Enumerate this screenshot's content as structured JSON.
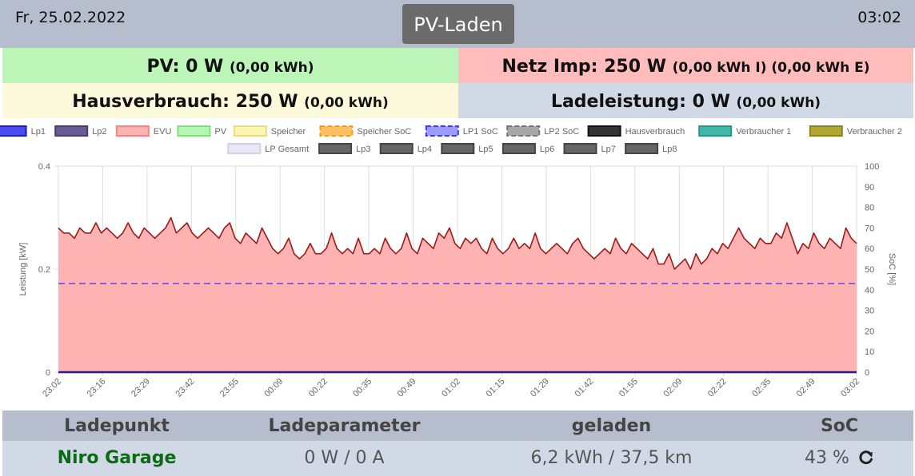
{
  "header": {
    "date": "Fr, 25.02.2022",
    "mode_button": "PV-Laden",
    "time": "03:02"
  },
  "status": {
    "pv": {
      "label": "PV: 0 W",
      "sub": "(0,00 kWh)"
    },
    "netz": {
      "label": "Netz Imp: 250 W",
      "sub": "(0,00 kWh I) (0,00 kWh E)"
    },
    "haus": {
      "label": "Hausverbrauch: 250 W",
      "sub": "(0,00 kWh)"
    },
    "lade": {
      "label": "Ladeleistung: 0 W",
      "sub": "(0,00 kWh)"
    }
  },
  "colors": {
    "pv_bg": "#bdf5b9",
    "netz_bg": "#ffbcbc",
    "haus_bg": "#fdfadc",
    "lade_bg": "#d2d9e6",
    "header_bg": "#b6bdcc",
    "mode_button_bg": "#6b6b6b",
    "evu_fill": "#ffb3b3",
    "evu_line": "#9b1a1a",
    "lp1_soc_line": "#8a5ce6",
    "lp1_line": "#1a1aa8",
    "ladepunkt_name": "#0b6a14"
  },
  "chart_data": {
    "type": "area",
    "ylabel": "Leistung [kW]",
    "y2label": "SoC [%]",
    "ylim": [
      0,
      0.4
    ],
    "y_ticks": [
      "0",
      "0.2",
      "0.4"
    ],
    "y2lim": [
      0,
      100
    ],
    "y2_ticks": [
      "0",
      "10",
      "20",
      "30",
      "40",
      "50",
      "60",
      "70",
      "80",
      "90",
      "100"
    ],
    "x_ticks": [
      "23:02",
      "23:16",
      "23:29",
      "23:42",
      "23:55",
      "00:09",
      "00:22",
      "00:35",
      "00:49",
      "01:02",
      "01:15",
      "01:29",
      "01:42",
      "01:55",
      "02:09",
      "02:22",
      "02:35",
      "02:49",
      "03:02"
    ],
    "legend": [
      {
        "name": "Lp1",
        "color": "#4b4bf0",
        "border": "#1a1ac8",
        "dashed": false
      },
      {
        "name": "Lp2",
        "color": "#6b5b95",
        "border": "#4b3b75",
        "dashed": false
      },
      {
        "name": "EVU",
        "color": "#ffb3b3",
        "border": "#ff8080",
        "dashed": false
      },
      {
        "name": "PV",
        "color": "#b3f7b3",
        "border": "#80e080",
        "dashed": false
      },
      {
        "name": "Speicher",
        "color": "#fbf5b0",
        "border": "#e6dc80",
        "dashed": false
      },
      {
        "name": "Speicher SoC",
        "color": "#ffc060",
        "border": "#ff9a20",
        "dashed": true
      },
      {
        "name": "LP1 SoC",
        "color": "#9c9cff",
        "border": "#3a3aff",
        "dashed": true
      },
      {
        "name": "LP2 SoC",
        "color": "#a8a8a8",
        "border": "#777777",
        "dashed": true
      },
      {
        "name": "Hausverbrauch",
        "color": "#333333",
        "border": "#111111",
        "dashed": false
      },
      {
        "name": "Verbraucher 1",
        "color": "#3fb8a8",
        "border": "#2a9888",
        "dashed": false
      },
      {
        "name": "Verbraucher 2",
        "color": "#b0a830",
        "border": "#8a8420",
        "dashed": false
      },
      {
        "name": "LP Gesamt",
        "color": "#e8e8f8",
        "border": "#d0d0e8",
        "dashed": false
      },
      {
        "name": "Lp3",
        "color": "#666666",
        "border": "#444444",
        "dashed": false
      },
      {
        "name": "Lp4",
        "color": "#666666",
        "border": "#444444",
        "dashed": false
      },
      {
        "name": "Lp5",
        "color": "#666666",
        "border": "#444444",
        "dashed": false
      },
      {
        "name": "Lp6",
        "color": "#666666",
        "border": "#444444",
        "dashed": false
      },
      {
        "name": "Lp7",
        "color": "#666666",
        "border": "#444444",
        "dashed": false
      },
      {
        "name": "Lp8",
        "color": "#666666",
        "border": "#444444",
        "dashed": false
      }
    ],
    "series": [
      {
        "name": "EVU",
        "axis": "left",
        "values": [
          0.28,
          0.27,
          0.27,
          0.26,
          0.28,
          0.27,
          0.27,
          0.29,
          0.27,
          0.28,
          0.27,
          0.26,
          0.27,
          0.29,
          0.27,
          0.26,
          0.28,
          0.27,
          0.26,
          0.27,
          0.28,
          0.3,
          0.27,
          0.28,
          0.29,
          0.27,
          0.26,
          0.27,
          0.28,
          0.27,
          0.26,
          0.28,
          0.29,
          0.26,
          0.25,
          0.27,
          0.26,
          0.25,
          0.28,
          0.26,
          0.24,
          0.23,
          0.24,
          0.26,
          0.23,
          0.22,
          0.23,
          0.25,
          0.23,
          0.23,
          0.24,
          0.27,
          0.24,
          0.23,
          0.24,
          0.23,
          0.26,
          0.23,
          0.23,
          0.24,
          0.23,
          0.26,
          0.24,
          0.23,
          0.24,
          0.27,
          0.24,
          0.23,
          0.26,
          0.25,
          0.24,
          0.27,
          0.26,
          0.28,
          0.25,
          0.24,
          0.26,
          0.25,
          0.26,
          0.24,
          0.23,
          0.26,
          0.24,
          0.23,
          0.24,
          0.26,
          0.24,
          0.25,
          0.24,
          0.27,
          0.24,
          0.23,
          0.24,
          0.25,
          0.24,
          0.23,
          0.25,
          0.26,
          0.24,
          0.23,
          0.22,
          0.23,
          0.24,
          0.23,
          0.26,
          0.24,
          0.23,
          0.25,
          0.24,
          0.23,
          0.22,
          0.24,
          0.21,
          0.21,
          0.23,
          0.2,
          0.21,
          0.22,
          0.2,
          0.23,
          0.21,
          0.22,
          0.24,
          0.23,
          0.25,
          0.24,
          0.26,
          0.28,
          0.26,
          0.25,
          0.24,
          0.26,
          0.25,
          0.25,
          0.27,
          0.26,
          0.29,
          0.26,
          0.23,
          0.25,
          0.24,
          0.27,
          0.25,
          0.24,
          0.26,
          0.25,
          0.24,
          0.28,
          0.26,
          0.25
        ]
      },
      {
        "name": "LP1 SoC",
        "axis": "right",
        "values": [
          43,
          43
        ]
      },
      {
        "name": "Lp1",
        "axis": "left",
        "values": [
          0,
          0
        ]
      }
    ]
  },
  "table": {
    "headers": [
      "Ladepunkt",
      "Ladeparameter",
      "geladen",
      "SoC"
    ],
    "row": {
      "name": "Niro Garage",
      "params": "0 W / 0 A",
      "charged": "6,2 kWh / 37,5 km",
      "soc": "43 %"
    }
  }
}
